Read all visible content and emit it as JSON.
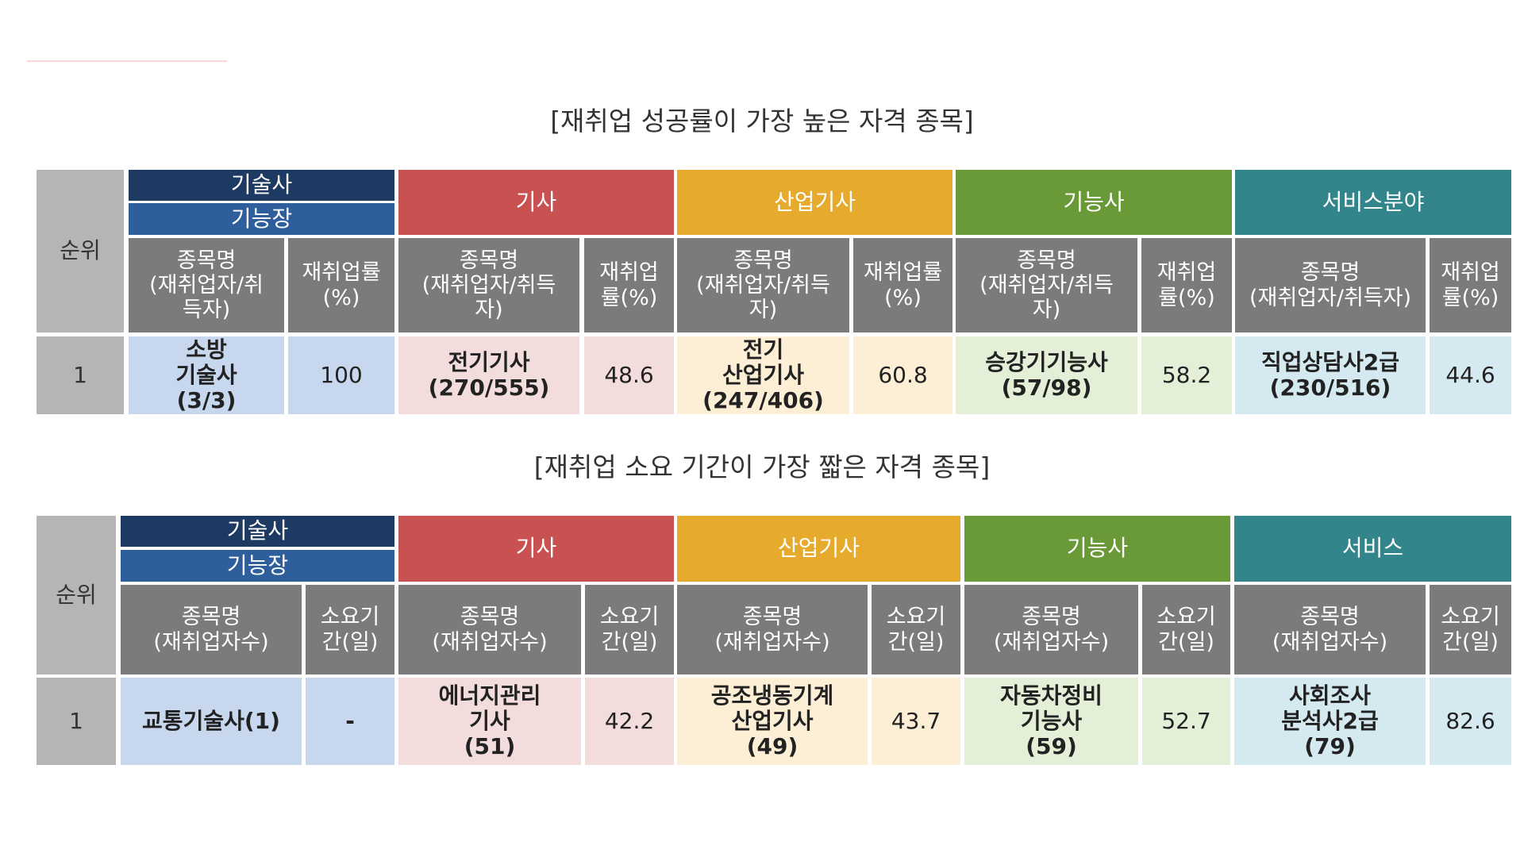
{
  "table1": {
    "title": "[재취업 성공률이 가장 높은 자격 종목]",
    "rank_header": "순위",
    "categories": {
      "tech_top": "기술사",
      "tech_bottom": "기능장",
      "gisa": "기사",
      "sanup": "산업기사",
      "gineung": "기능사",
      "service": "서비스분야"
    },
    "subheaders": {
      "tech_name": "종목명\n(재취업자/취\n득자)",
      "tech_rate": "재취업률\n(%)",
      "gisa_name": "종목명\n(재취업자/취득\n자)",
      "gisa_rate": "재취업\n률(%)",
      "sanup_name": "종목명\n(재취업자/취득\n자)",
      "sanup_rate": "재취업률\n(%)",
      "gineung_name": "종목명\n(재취업자/취득\n자)",
      "gineung_rate": "재취업\n률(%)",
      "service_name": "종목명\n(재취업자/취득자)",
      "service_rate": "재취업\n률(%)"
    },
    "row": {
      "rank": "1",
      "tech_name": "소방\n기술사\n(3/3)",
      "tech_rate": "100",
      "gisa_name": "전기기사\n(270/555)",
      "gisa_rate": "48.6",
      "sanup_name": "전기\n산업기사\n(247/406)",
      "sanup_rate": "60.8",
      "gineung_name": "승강기기능사\n(57/98)",
      "gineung_rate": "58.2",
      "service_name": "직업상담사2급\n(230/516)",
      "service_rate": "44.6"
    }
  },
  "table2": {
    "title": "[재취업 소요 기간이 가장 짧은 자격 종목]",
    "rank_header": "순위",
    "categories": {
      "tech_top": "기술사",
      "tech_bottom": "기능장",
      "gisa": "기사",
      "sanup": "산업기사",
      "gineung": "기능사",
      "service": "서비스"
    },
    "subheaders": {
      "name": "종목명\n(재취업자수)",
      "days": "소요기\n간(일)"
    },
    "row": {
      "rank": "1",
      "tech_name": "교통기술사(1)",
      "tech_days": "-",
      "gisa_name": "에너지관리\n기사\n(51)",
      "gisa_days": "42.2",
      "sanup_name": "공조냉동기계\n산업기사\n(49)",
      "sanup_days": "43.7",
      "gineung_name": "자동차정비\n기능사\n(59)",
      "gineung_days": "52.7",
      "service_name": "사회조사\n분석사2급\n(79)",
      "service_days": "82.6"
    }
  }
}
